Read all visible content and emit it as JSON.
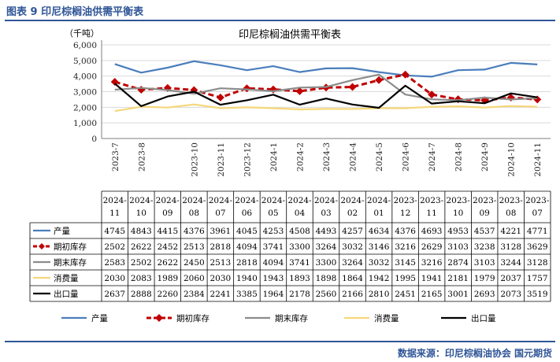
{
  "figure_title": "图表 9  印尼棕榈油供需平衡表",
  "source": "数据来源：印尼棕榈油协会  国元期货",
  "chart_data": {
    "type": "line",
    "title": "印尼棕榈油供需平衡表",
    "ylabel": "（千吨）",
    "ylim": [
      0,
      6000
    ],
    "yticks": [
      "0",
      "1,000",
      "2,000",
      "3,000",
      "4,000",
      "5,000",
      "6,000"
    ],
    "x": [
      "2023-7",
      "2023-8",
      "2023-9",
      "2023-10",
      "2023-11",
      "2023-12",
      "2024-1",
      "2024-2",
      "2024-3",
      "2024-4",
      "2024-5",
      "2024-6",
      "2024-7",
      "2024-8",
      "2024-9",
      "2024-10",
      "2024-11"
    ],
    "xticks": [
      "2023-7",
      "2023-8",
      "2023-10",
      "2023-11",
      "2023-12",
      "2024-1",
      "2024-2",
      "2024-3",
      "2024-4",
      "2024-5",
      "2024-6",
      "2024-7",
      "2024-8",
      "2024-9",
      "2024-10",
      "2024-11"
    ],
    "grid": true,
    "legend_position": "bottom",
    "series": [
      {
        "name": "产量",
        "color": "#4a7ebb",
        "style": "solid",
        "values": [
          4771,
          4221,
          4537,
          4953,
          4693,
          4376,
          4634,
          4257,
          4493,
          4508,
          4253,
          4045,
          3961,
          4376,
          4415,
          4843,
          4745
        ]
      },
      {
        "name": "期初库存",
        "color": "#c00000",
        "style": "dashed-diamond",
        "values": [
          3629,
          3128,
          3238,
          3103,
          2629,
          3216,
          3146,
          3032,
          3264,
          3300,
          3741,
          4094,
          2818,
          2513,
          2452,
          2622,
          2502
        ]
      },
      {
        "name": "期末库存",
        "color": "#8c8c8c",
        "style": "solid",
        "values": [
          3128,
          3244,
          3103,
          2874,
          3216,
          3145,
          3032,
          3264,
          3300,
          3741,
          4094,
          2818,
          2513,
          2450,
          2622,
          2502,
          2583
        ]
      },
      {
        "name": "消费量",
        "color": "#f5d77a",
        "style": "solid",
        "values": [
          1757,
          2037,
          1979,
          2181,
          1941,
          1995,
          1942,
          1864,
          1898,
          1893,
          1943,
          1940,
          2030,
          2060,
          1989,
          2083,
          2030
        ]
      },
      {
        "name": "出口量",
        "color": "#000000",
        "style": "solid",
        "values": [
          3519,
          2073,
          2693,
          3001,
          2165,
          2451,
          2810,
          2166,
          2560,
          2178,
          1964,
          3385,
          2241,
          2384,
          2260,
          2888,
          2637
        ]
      }
    ],
    "table": {
      "columns": [
        [
          "2024-",
          "11"
        ],
        [
          "2024-",
          "10"
        ],
        [
          "2024-",
          "09"
        ],
        [
          "2024-",
          "08"
        ],
        [
          "2024-",
          "07"
        ],
        [
          "2024-",
          "06"
        ],
        [
          "2024-",
          "05"
        ],
        [
          "2024-",
          "04"
        ],
        [
          "2024-",
          "03"
        ],
        [
          "2024-",
          "02"
        ],
        [
          "2024-",
          "01"
        ],
        [
          "2023-",
          "12"
        ],
        [
          "2023-",
          "11"
        ],
        [
          "2023-",
          "10"
        ],
        [
          "2023-",
          "09"
        ],
        [
          "2023-",
          "08"
        ],
        [
          "2023-",
          "07"
        ]
      ],
      "rows": [
        {
          "label": "产量",
          "values": [
            "4745",
            "4843",
            "4415",
            "4376",
            "3961",
            "4045",
            "4253",
            "4508",
            "4493",
            "4257",
            "4634",
            "4376",
            "4693",
            "4953",
            "4537",
            "4221",
            "4771"
          ]
        },
        {
          "label": "期初库存",
          "values": [
            "2502",
            "2622",
            "2452",
            "2513",
            "2818",
            "4094",
            "3741",
            "3300",
            "3264",
            "3032",
            "3146",
            "3216",
            "2629",
            "3103",
            "3238",
            "3128",
            "3629"
          ]
        },
        {
          "label": "期末库存",
          "values": [
            "2583",
            "2502",
            "2622",
            "2450",
            "2513",
            "2818",
            "4094",
            "3741",
            "3300",
            "3264",
            "3032",
            "3145",
            "3216",
            "2874",
            "3103",
            "3244",
            "3128"
          ]
        },
        {
          "label": "消费量",
          "values": [
            "2030",
            "2083",
            "1989",
            "2060",
            "2030",
            "1940",
            "1943",
            "1893",
            "1898",
            "1864",
            "1942",
            "1995",
            "1941",
            "2181",
            "1979",
            "2037",
            "1757"
          ]
        },
        {
          "label": "出口量",
          "values": [
            "2637",
            "2888",
            "2260",
            "2384",
            "2241",
            "3385",
            "1964",
            "2178",
            "2560",
            "2166",
            "2810",
            "2451",
            "2165",
            "3001",
            "2693",
            "2073",
            "3519"
          ]
        }
      ]
    }
  }
}
